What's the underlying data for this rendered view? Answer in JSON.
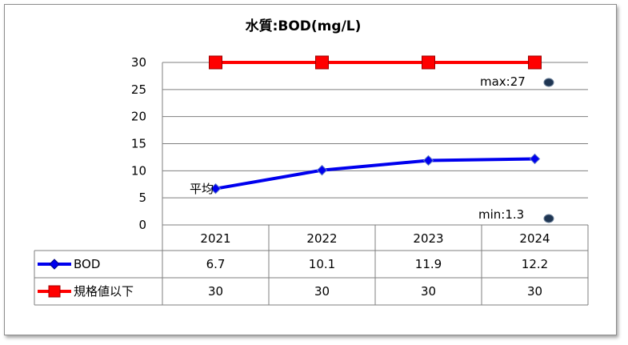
{
  "chart_data": {
    "type": "line",
    "title": "水質:BOD(mg/L)",
    "categories": [
      "2021",
      "2022",
      "2023",
      "2024"
    ],
    "series": [
      {
        "name": "BOD",
        "values": [
          6.7,
          10.1,
          11.9,
          12.2
        ],
        "color": "#0000ee",
        "marker": "diamond"
      },
      {
        "name": "規格値以下",
        "values": [
          30,
          30,
          30,
          30
        ],
        "color": "#ff0000",
        "marker": "square"
      }
    ],
    "ylim": [
      0,
      30
    ],
    "yticks": [
      0,
      5,
      10,
      15,
      20,
      25,
      30
    ],
    "grid": true,
    "legend": "data-table",
    "annotations": {
      "max": "max:27",
      "min": "min:1.3",
      "avg": "平均"
    }
  }
}
